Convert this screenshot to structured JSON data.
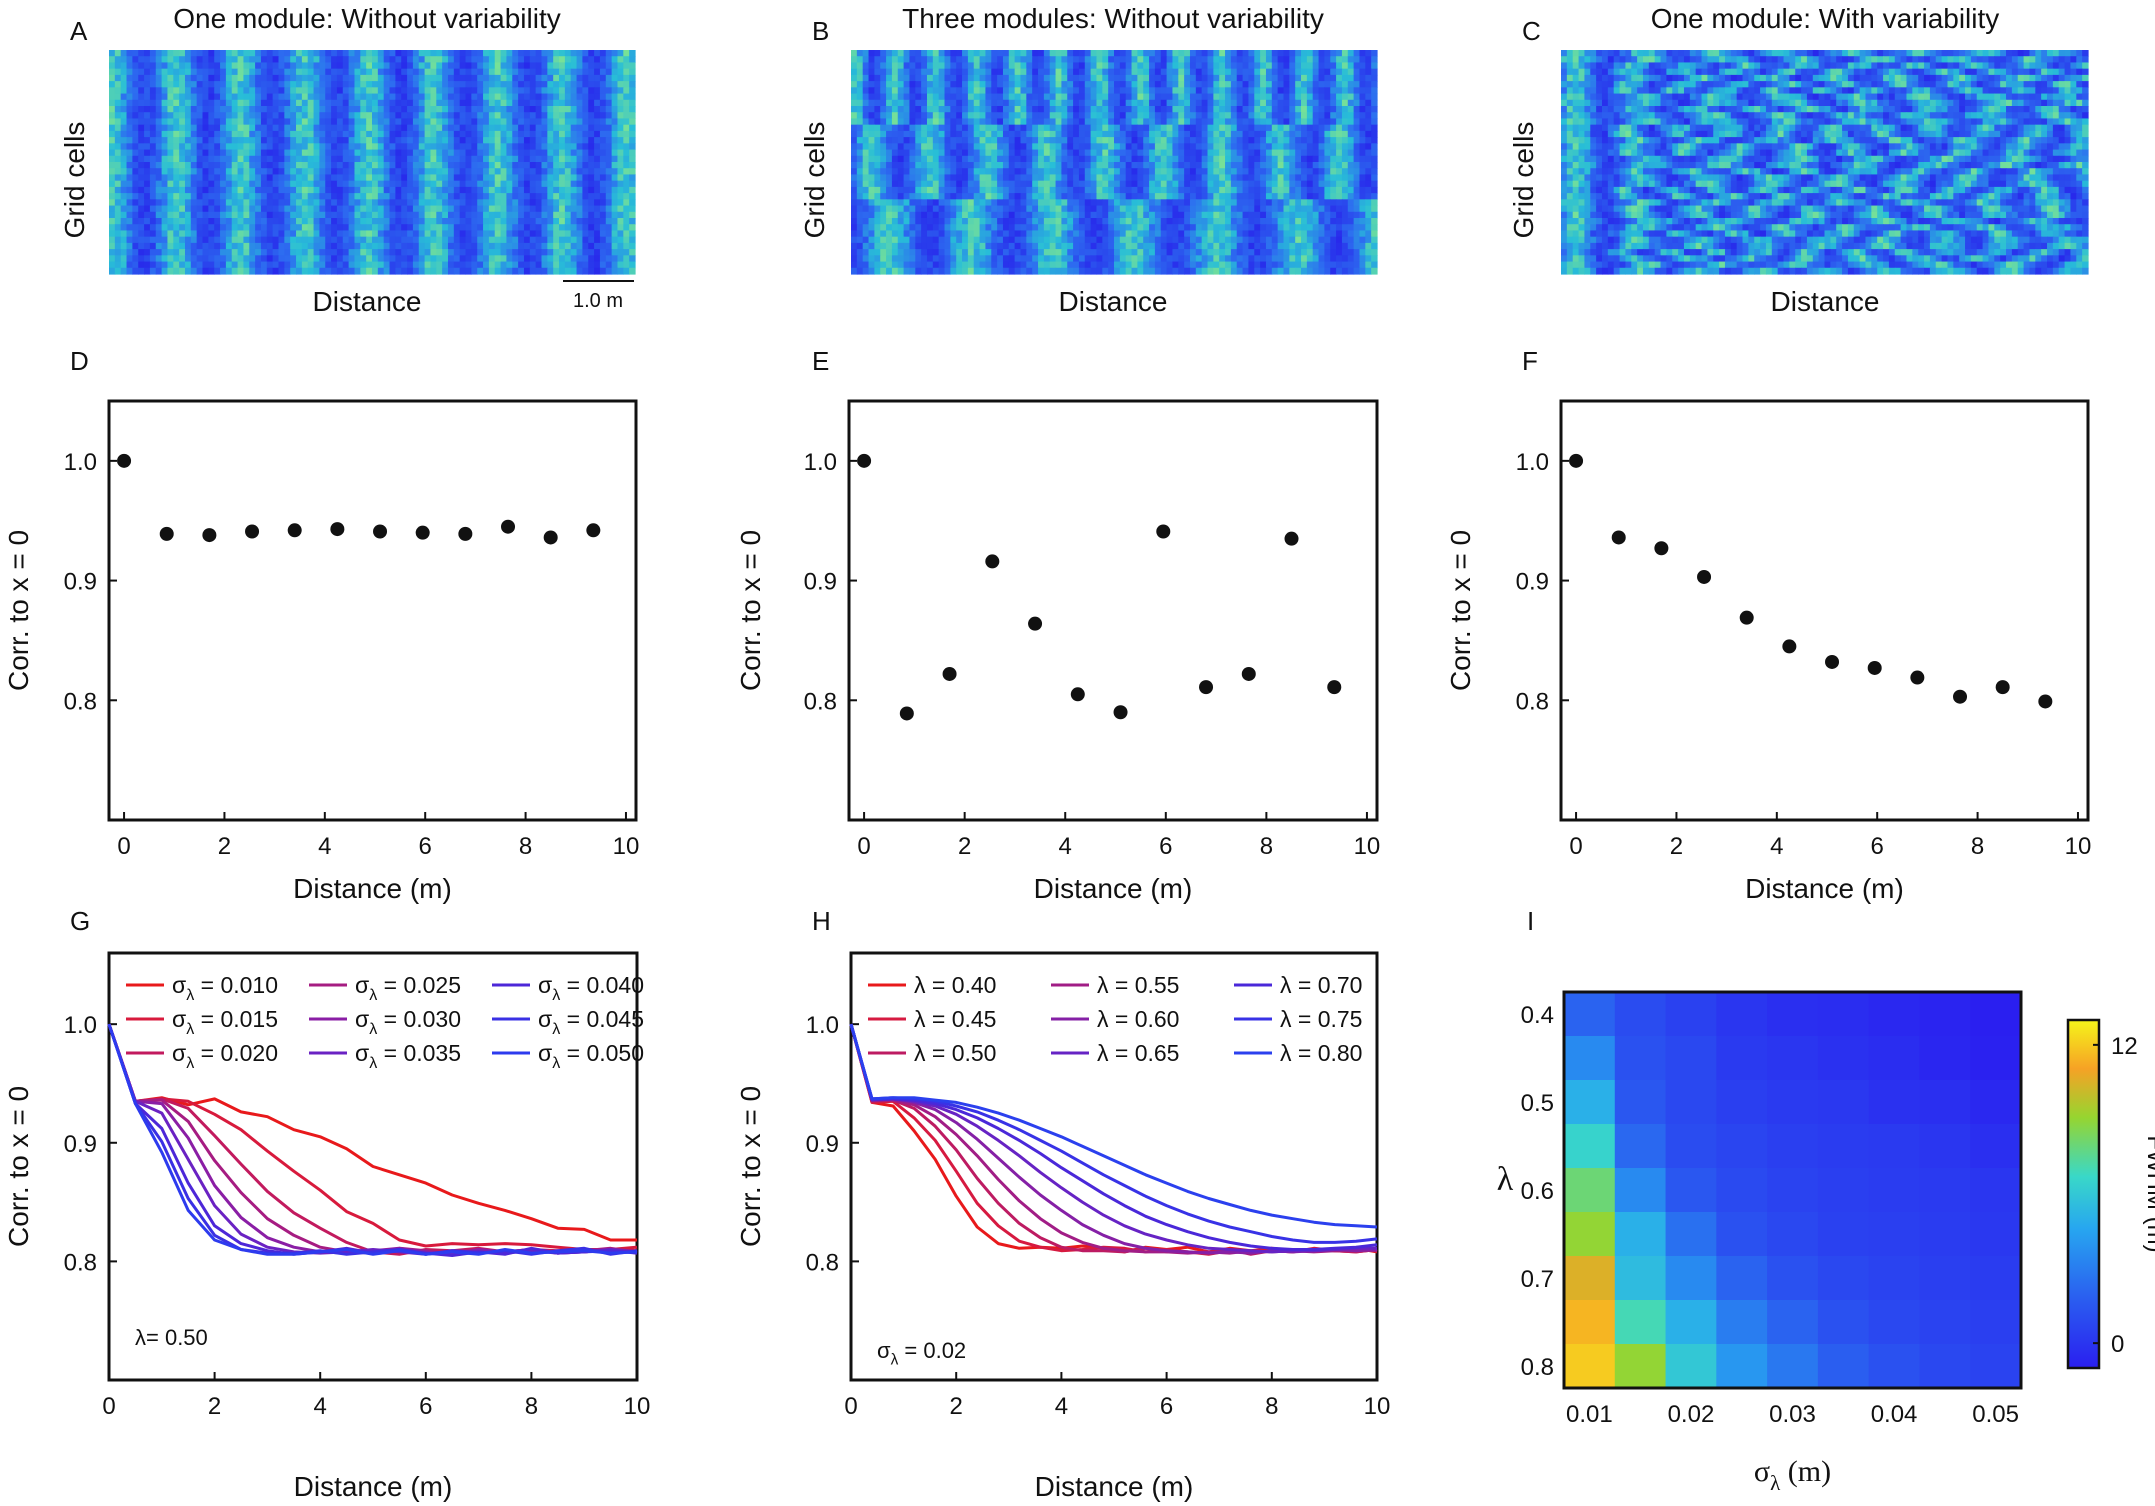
{
  "panels_top": [
    {
      "letter": "A",
      "title": "One module: Without variability",
      "ylabel": "Grid cells",
      "xlabel": "Distance",
      "scalebar": "1.0 m",
      "pattern": "uniform"
    },
    {
      "letter": "B",
      "title": "Three modules: Without variability",
      "ylabel": "Grid cells",
      "xlabel": "Distance",
      "pattern": "modules"
    },
    {
      "letter": "C",
      "title": "One module: With variability",
      "ylabel": "Grid cells",
      "xlabel": "Distance",
      "pattern": "variable"
    }
  ],
  "chart_data": [
    {
      "panel": "D",
      "type": "scatter",
      "xlabel": "Distance (m)",
      "ylabel": "Corr. to x = 0",
      "xlim": [
        -0.3,
        10.2
      ],
      "ylim": [
        0.7,
        1.05
      ],
      "xticks": [
        "0",
        "2",
        "4",
        "6",
        "8",
        "10"
      ],
      "yticks": [
        "0.8",
        "0.9",
        "1.0"
      ],
      "x": [
        0,
        0.85,
        1.7,
        2.55,
        3.4,
        4.25,
        5.1,
        5.95,
        6.8,
        7.65,
        8.5,
        9.35
      ],
      "y": [
        1.0,
        0.939,
        0.938,
        0.941,
        0.942,
        0.943,
        0.941,
        0.94,
        0.939,
        0.945,
        0.936,
        0.942
      ]
    },
    {
      "panel": "E",
      "type": "scatter",
      "xlabel": "Distance (m)",
      "ylabel": "Corr. to x = 0",
      "xlim": [
        -0.3,
        10.2
      ],
      "ylim": [
        0.7,
        1.05
      ],
      "xticks": [
        "0",
        "2",
        "4",
        "6",
        "8",
        "10"
      ],
      "yticks": [
        "0.8",
        "0.9",
        "1.0"
      ],
      "x": [
        0,
        0.85,
        1.7,
        2.55,
        3.4,
        4.25,
        5.1,
        5.95,
        6.8,
        7.65,
        8.5,
        9.35
      ],
      "y": [
        1.0,
        0.789,
        0.822,
        0.916,
        0.864,
        0.805,
        0.79,
        0.941,
        0.811,
        0.822,
        0.935,
        0.811
      ]
    },
    {
      "panel": "F",
      "type": "scatter",
      "xlabel": "Distance (m)",
      "ylabel": "Corr. to x = 0",
      "xlim": [
        -0.3,
        10.2
      ],
      "ylim": [
        0.7,
        1.05
      ],
      "xticks": [
        "0",
        "2",
        "4",
        "6",
        "8",
        "10"
      ],
      "yticks": [
        "0.8",
        "0.9",
        "1.0"
      ],
      "x": [
        0,
        0.85,
        1.7,
        2.55,
        3.4,
        4.25,
        5.1,
        5.95,
        6.8,
        7.65,
        8.5,
        9.35
      ],
      "y": [
        1.0,
        0.936,
        0.927,
        0.903,
        0.869,
        0.845,
        0.832,
        0.827,
        0.819,
        0.803,
        0.811,
        0.799
      ]
    },
    {
      "panel": "G",
      "type": "line",
      "xlabel": "Distance (m)",
      "ylabel": "Corr. to x = 0",
      "xlim": [
        0,
        10
      ],
      "ylim": [
        0.7,
        1.06
      ],
      "xticks": [
        "0",
        "2",
        "4",
        "6",
        "8",
        "10"
      ],
      "yticks": [
        "0.8",
        "0.9",
        "1.0"
      ],
      "annotation": "λ= 0.50",
      "x": [
        0,
        0.5,
        1,
        1.5,
        2,
        2.5,
        3,
        3.5,
        4,
        4.5,
        5,
        5.5,
        6,
        6.5,
        7,
        7.5,
        8,
        8.5,
        9,
        9.5,
        10
      ],
      "series": [
        {
          "name": "σλ = 0.010",
          "sym": "σ",
          "sub": "λ",
          "val": " = 0.010",
          "color": "#e8191b",
          "values": [
            1.0,
            0.935,
            0.938,
            0.932,
            0.937,
            0.926,
            0.922,
            0.911,
            0.905,
            0.895,
            0.88,
            0.873,
            0.866,
            0.856,
            0.849,
            0.843,
            0.836,
            0.828,
            0.827,
            0.818,
            0.818
          ]
        },
        {
          "name": "σλ = 0.015",
          "sym": "σ",
          "sub": "λ",
          "val": " = 0.015",
          "color": "#d81a3c",
          "values": [
            1.0,
            0.935,
            0.937,
            0.935,
            0.924,
            0.911,
            0.893,
            0.876,
            0.86,
            0.842,
            0.832,
            0.818,
            0.813,
            0.815,
            0.814,
            0.815,
            0.814,
            0.812,
            0.81,
            0.81,
            0.812
          ]
        },
        {
          "name": "σλ = 0.020",
          "sym": "σ",
          "sub": "λ",
          "val": " = 0.020",
          "color": "#c21a5e",
          "values": [
            1.0,
            0.935,
            0.937,
            0.929,
            0.906,
            0.882,
            0.859,
            0.841,
            0.828,
            0.816,
            0.808,
            0.806,
            0.81,
            0.809,
            0.811,
            0.808,
            0.81,
            0.809,
            0.808,
            0.81,
            0.809
          ]
        },
        {
          "name": "σλ = 0.025",
          "sym": "σ",
          "sub": "λ",
          "val": " = 0.025",
          "color": "#a61c82",
          "values": [
            1.0,
            0.935,
            0.936,
            0.918,
            0.885,
            0.858,
            0.836,
            0.822,
            0.812,
            0.808,
            0.807,
            0.811,
            0.809,
            0.806,
            0.81,
            0.808,
            0.81,
            0.807,
            0.809,
            0.811,
            0.808
          ]
        },
        {
          "name": "σλ = 0.030",
          "sym": "σ",
          "sub": "λ",
          "val": " = 0.030",
          "color": "#8a1ea5",
          "values": [
            1.0,
            0.935,
            0.933,
            0.904,
            0.864,
            0.837,
            0.82,
            0.812,
            0.808,
            0.807,
            0.809,
            0.811,
            0.808,
            0.806,
            0.81,
            0.808,
            0.81,
            0.807,
            0.808,
            0.81,
            0.807
          ]
        },
        {
          "name": "σλ = 0.035",
          "sym": "σ",
          "sub": "λ",
          "val": " = 0.035",
          "color": "#6a22c3",
          "values": [
            1.0,
            0.935,
            0.925,
            0.886,
            0.847,
            0.823,
            0.812,
            0.808,
            0.807,
            0.808,
            0.81,
            0.808,
            0.806,
            0.809,
            0.808,
            0.807,
            0.809,
            0.807,
            0.808,
            0.81,
            0.808
          ]
        },
        {
          "name": "σλ = 0.040",
          "sym": "σ",
          "sub": "λ",
          "val": " = 0.040",
          "color": "#4d27d8",
          "values": [
            1.0,
            0.933,
            0.912,
            0.866,
            0.83,
            0.815,
            0.809,
            0.806,
            0.808,
            0.811,
            0.807,
            0.81,
            0.807,
            0.805,
            0.808,
            0.806,
            0.811,
            0.807,
            0.808,
            0.809,
            0.807
          ]
        },
        {
          "name": "σλ = 0.045",
          "sym": "σ",
          "sub": "λ",
          "val": " = 0.045",
          "color": "#3a30e4",
          "values": [
            1.0,
            0.933,
            0.901,
            0.853,
            0.822,
            0.81,
            0.807,
            0.807,
            0.809,
            0.806,
            0.808,
            0.81,
            0.806,
            0.809,
            0.807,
            0.809,
            0.806,
            0.809,
            0.811,
            0.806,
            0.809
          ]
        },
        {
          "name": "σλ = 0.050",
          "sym": "σ",
          "sub": "λ",
          "val": " = 0.050",
          "color": "#2d3bee",
          "values": [
            1.0,
            0.933,
            0.892,
            0.843,
            0.818,
            0.81,
            0.806,
            0.806,
            0.808,
            0.81,
            0.806,
            0.809,
            0.806,
            0.808,
            0.806,
            0.81,
            0.807,
            0.808,
            0.809,
            0.807,
            0.808
          ]
        }
      ]
    },
    {
      "panel": "H",
      "type": "line",
      "xlabel": "Distance (m)",
      "ylabel": "Corr. to x = 0",
      "xlim": [
        0,
        10
      ],
      "ylim": [
        0.7,
        1.06
      ],
      "xticks": [
        "0",
        "2",
        "4",
        "6",
        "8",
        "10"
      ],
      "yticks": [
        "0.8",
        "0.9",
        "1.0"
      ],
      "annotation": "σλ = 0.02",
      "annotation_sym": "σ",
      "annotation_sub": "λ",
      "annotation_val": " = 0.02",
      "x": [
        0,
        0.4,
        0.8,
        1.2,
        1.6,
        2.0,
        2.4,
        2.8,
        3.2,
        3.6,
        4.0,
        4.4,
        4.8,
        5.2,
        5.6,
        6.0,
        6.4,
        6.8,
        7.2,
        7.6,
        8.0,
        8.4,
        8.8,
        9.2,
        9.6,
        10.0
      ],
      "series": [
        {
          "name": "λ = 0.40",
          "sym": "λ",
          "val": " = 0.40",
          "color": "#e8191b",
          "values": [
            1.0,
            0.934,
            0.931,
            0.91,
            0.886,
            0.855,
            0.829,
            0.815,
            0.811,
            0.812,
            0.811,
            0.813,
            0.811,
            0.808,
            0.812,
            0.81,
            0.812,
            0.808,
            0.811,
            0.809,
            0.811,
            0.809,
            0.81,
            0.809,
            0.811,
            0.808
          ]
        },
        {
          "name": "λ = 0.45",
          "sym": "λ",
          "val": " = 0.45",
          "color": "#d61a40",
          "values": [
            1.0,
            0.934,
            0.935,
            0.921,
            0.902,
            0.876,
            0.849,
            0.83,
            0.817,
            0.812,
            0.809,
            0.81,
            0.812,
            0.811,
            0.808,
            0.81,
            0.808,
            0.806,
            0.809,
            0.807,
            0.809,
            0.808,
            0.811,
            0.809,
            0.808,
            0.81
          ]
        },
        {
          "name": "λ = 0.50",
          "sym": "λ",
          "val": " = 0.50",
          "color": "#bd1b62",
          "values": [
            1.0,
            0.935,
            0.936,
            0.929,
            0.914,
            0.894,
            0.87,
            0.849,
            0.832,
            0.82,
            0.812,
            0.809,
            0.809,
            0.808,
            0.811,
            0.808,
            0.808,
            0.807,
            0.81,
            0.806,
            0.809,
            0.808,
            0.81,
            0.809,
            0.808,
            0.81
          ]
        },
        {
          "name": "λ = 0.55",
          "sym": "λ",
          "val": " = 0.55",
          "color": "#a11d86",
          "values": [
            1.0,
            0.936,
            0.936,
            0.932,
            0.922,
            0.907,
            0.889,
            0.869,
            0.851,
            0.836,
            0.824,
            0.816,
            0.811,
            0.809,
            0.808,
            0.808,
            0.807,
            0.808,
            0.807,
            0.809,
            0.808,
            0.809,
            0.808,
            0.809,
            0.81,
            0.809
          ]
        },
        {
          "name": "λ = 0.60",
          "sym": "λ",
          "val": " = 0.60",
          "color": "#8520a6",
          "values": [
            1.0,
            0.936,
            0.937,
            0.934,
            0.928,
            0.917,
            0.903,
            0.887,
            0.871,
            0.856,
            0.843,
            0.831,
            0.822,
            0.815,
            0.811,
            0.809,
            0.808,
            0.807,
            0.808,
            0.807,
            0.809,
            0.808,
            0.809,
            0.81,
            0.809,
            0.81
          ]
        },
        {
          "name": "λ = 0.65",
          "sym": "λ",
          "val": " = 0.65",
          "color": "#6623c4",
          "values": [
            1.0,
            0.936,
            0.937,
            0.935,
            0.931,
            0.924,
            0.914,
            0.902,
            0.889,
            0.875,
            0.862,
            0.85,
            0.839,
            0.83,
            0.823,
            0.818,
            0.814,
            0.811,
            0.81,
            0.809,
            0.808,
            0.809,
            0.809,
            0.81,
            0.811,
            0.811
          ]
        },
        {
          "name": "λ = 0.70",
          "sym": "λ",
          "val": " = 0.70",
          "color": "#4a28d9",
          "values": [
            1.0,
            0.937,
            0.937,
            0.936,
            0.933,
            0.928,
            0.921,
            0.912,
            0.902,
            0.891,
            0.879,
            0.868,
            0.857,
            0.847,
            0.838,
            0.831,
            0.825,
            0.82,
            0.816,
            0.813,
            0.811,
            0.81,
            0.81,
            0.811,
            0.812,
            0.814
          ]
        },
        {
          "name": "λ = 0.75",
          "sym": "λ",
          "val": " = 0.75",
          "color": "#3832e6",
          "values": [
            1.0,
            0.937,
            0.938,
            0.937,
            0.935,
            0.931,
            0.926,
            0.919,
            0.911,
            0.902,
            0.893,
            0.883,
            0.873,
            0.864,
            0.855,
            0.847,
            0.84,
            0.834,
            0.829,
            0.825,
            0.821,
            0.818,
            0.816,
            0.816,
            0.817,
            0.819
          ]
        },
        {
          "name": "λ = 0.80",
          "sym": "λ",
          "val": " = 0.80",
          "color": "#2b40ee",
          "values": [
            1.0,
            0.937,
            0.938,
            0.938,
            0.936,
            0.934,
            0.93,
            0.925,
            0.919,
            0.912,
            0.905,
            0.897,
            0.889,
            0.881,
            0.873,
            0.866,
            0.859,
            0.853,
            0.848,
            0.843,
            0.839,
            0.836,
            0.833,
            0.831,
            0.83,
            0.829
          ]
        }
      ]
    },
    {
      "panel": "I",
      "type": "heatmap",
      "xlabel": "σλ (m)",
      "xlabel_sym": "σ",
      "xlabel_sub": "λ",
      "xlabel_val": " (m)",
      "ylabel": "λ",
      "x": [
        0.01,
        0.015,
        0.02,
        0.025,
        0.03,
        0.035,
        0.04,
        0.045,
        0.05
      ],
      "y": [
        0.4,
        0.45,
        0.5,
        0.55,
        0.6,
        0.65,
        0.7,
        0.75,
        0.8
      ],
      "xticks": [
        "0.01",
        "0.02",
        "0.03",
        "0.04",
        "0.05"
      ],
      "yticks": [
        "0.4",
        "0.5",
        "0.6",
        "0.7",
        "0.8"
      ],
      "colorbar": {
        "label": "FWHM (m)",
        "min": -1,
        "max": 13,
        "ticks": [
          "12",
          "0"
        ]
      },
      "values": [
        [
          2.0,
          1.0,
          0.5,
          0.0,
          -0.3,
          -0.4,
          -0.6,
          -0.8,
          -1.0
        ],
        [
          3.5,
          1.2,
          0.8,
          0.2,
          0.0,
          -0.2,
          -0.4,
          -0.7,
          -0.9
        ],
        [
          5.0,
          1.5,
          0.8,
          0.4,
          0.2,
          0.1,
          -0.2,
          -0.3,
          -0.6
        ],
        [
          6.5,
          2.2,
          1.0,
          0.7,
          0.4,
          0.3,
          0.2,
          0.0,
          -0.3
        ],
        [
          8.0,
          3.5,
          1.5,
          0.9,
          0.6,
          0.4,
          0.3,
          0.2,
          0.0
        ],
        [
          9.0,
          5.0,
          2.5,
          1.2,
          0.8,
          0.5,
          0.4,
          0.3,
          0.1
        ],
        [
          10.5,
          5.5,
          3.5,
          2.0,
          1.2,
          0.8,
          0.6,
          0.4,
          0.3
        ],
        [
          11.5,
          7.0,
          5.0,
          3.0,
          2.0,
          1.2,
          0.8,
          0.6,
          0.4
        ],
        [
          12.0,
          9.0,
          6.0,
          4.0,
          2.8,
          1.8,
          1.2,
          0.8,
          0.6
        ]
      ]
    }
  ]
}
